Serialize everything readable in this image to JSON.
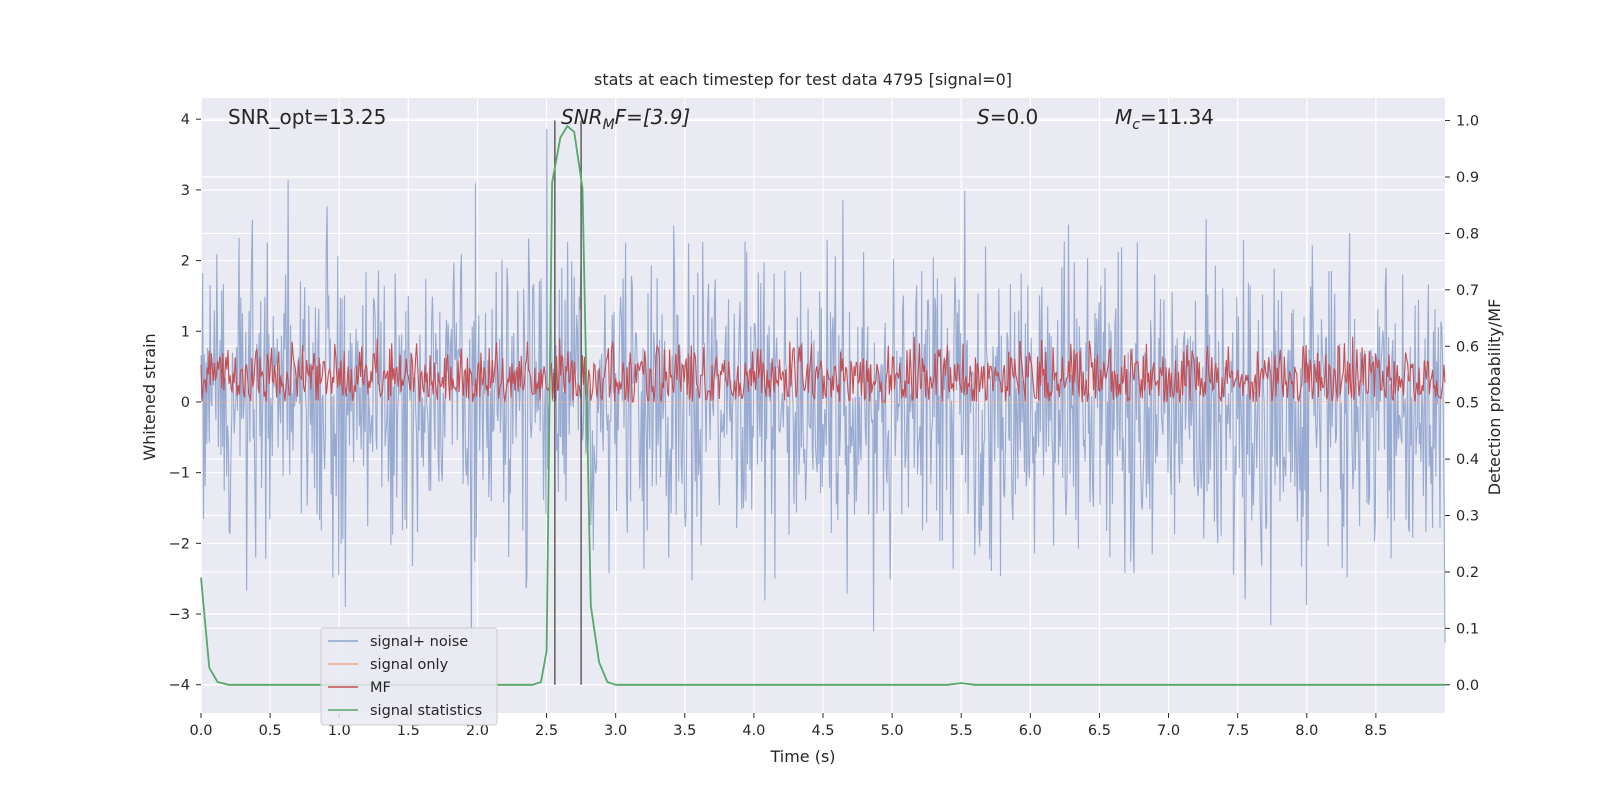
{
  "chart_data": {
    "type": "line",
    "title": "stats at each timestep for test data 4795 [signal=0]",
    "xlabel": "Time (s)",
    "ylabel_left": "Whitened strain",
    "ylabel_right": "Detection probability/MF",
    "xlim": [
      0.0,
      9.0
    ],
    "ylim_left": [
      -4.4,
      4.3
    ],
    "ylim_right": [
      -0.05,
      1.04
    ],
    "x_ticks": [
      "0.0",
      "0.5",
      "1.0",
      "1.5",
      "2.0",
      "2.5",
      "3.0",
      "3.5",
      "4.0",
      "4.5",
      "5.0",
      "5.5",
      "6.0",
      "6.5",
      "7.0",
      "7.5",
      "8.0",
      "8.5"
    ],
    "y_left_ticks": [
      "4",
      "3",
      "2",
      "1",
      "0",
      "−1",
      "−2",
      "−3",
      "−4"
    ],
    "y_right_ticks": [
      "1.0",
      "0.9",
      "0.8",
      "0.7",
      "0.6",
      "0.5",
      "0.4",
      "0.3",
      "0.2",
      "0.1",
      "0.0"
    ],
    "grid": true,
    "legend_position": "lower-left",
    "annotations": {
      "snr_opt": "SNR_opt=13.25",
      "snr_mf_main": "SNR",
      "snr_mf_sub": "M",
      "snr_mf_rest": "F=[3.9]",
      "s_italic": "S",
      "s_value": "=0.0",
      "mc_main": "M",
      "mc_sub": "c",
      "mc_value": "=11.34"
    },
    "vertical_markers_x": [
      2.56,
      2.75
    ],
    "series": [
      {
        "name": "signal+ noise",
        "color": "#8ea3cd",
        "axis": "left",
        "description_kind": "noise",
        "amplitude_envelope": [
          -2.0,
          2.0
        ],
        "x_range": [
          0.0,
          9.0
        ]
      },
      {
        "name": "signal only",
        "color": "#eea78c",
        "axis": "left",
        "values_constant": 0.0,
        "x_range": [
          0.0,
          9.0
        ]
      },
      {
        "name": "MF",
        "color": "#c44e52",
        "axis": "right",
        "band": [
          0.5,
          0.6
        ],
        "x_range": [
          0.0,
          9.0
        ]
      },
      {
        "name": "signal statistics",
        "color": "#55a868",
        "axis": "right",
        "x": [
          0.0,
          0.06,
          0.12,
          0.2,
          0.3,
          0.5,
          1.0,
          1.5,
          2.0,
          2.3,
          2.4,
          2.46,
          2.5,
          2.54,
          2.6,
          2.65,
          2.7,
          2.76,
          2.82,
          2.88,
          2.94,
          3.0,
          3.5,
          4.0,
          4.5,
          5.0,
          5.4,
          5.5,
          5.6,
          6.0,
          7.0,
          8.0,
          9.0
        ],
        "y": [
          0.19,
          0.03,
          0.005,
          0.0,
          0.0,
          0.0,
          0.0,
          0.0,
          0.0,
          0.0,
          0.0,
          0.005,
          0.06,
          0.89,
          0.97,
          0.99,
          0.98,
          0.88,
          0.14,
          0.04,
          0.005,
          0.0,
          0.0,
          0.0,
          0.0,
          0.0,
          0.0,
          0.003,
          0.0,
          0.0,
          0.0,
          0.0,
          0.0
        ]
      }
    ]
  },
  "colors": {
    "plot_bg": "#eaeaf2",
    "grid": "#ffffff",
    "marker_line": "#555555"
  }
}
